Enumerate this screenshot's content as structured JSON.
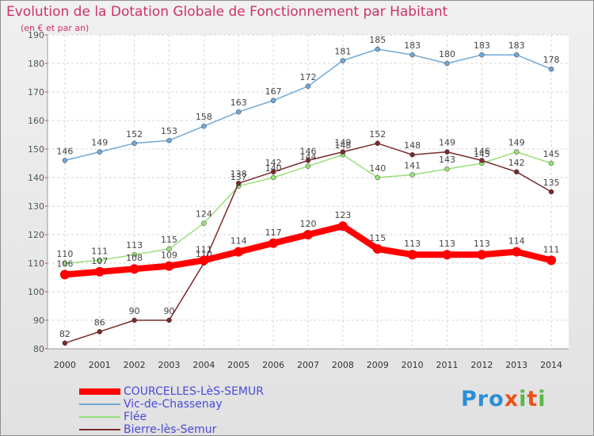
{
  "header": {
    "title": "Evolution de la Dotation Globale de Fonctionnement par Habitant",
    "subtitle": "(en € et par an)"
  },
  "logo": {
    "text": "Proxiti",
    "letter_colors": [
      "#2a8fd6",
      "#2a8fd6",
      "#2a8fd6",
      "#e8541a",
      "#57b846",
      "#e8541a",
      "#57b846"
    ]
  },
  "chart_data": {
    "type": "line",
    "title": "Evolution de la Dotation Globale de Fonctionnement par Habitant",
    "subtitle": "(en € et par an)",
    "xlabel": "",
    "ylabel": "",
    "x": [
      2000,
      2001,
      2002,
      2003,
      2004,
      2005,
      2006,
      2007,
      2008,
      2009,
      2010,
      2011,
      2012,
      2013,
      2014
    ],
    "ylim": [
      80,
      190
    ],
    "yticks": [
      80,
      90,
      100,
      110,
      120,
      130,
      140,
      150,
      160,
      170,
      180,
      190
    ],
    "grid": true,
    "legend_position": "bottom-left",
    "series": [
      {
        "name": "COURCELLES-LèS-SEMUR",
        "values": [
          106,
          107,
          108,
          109,
          111,
          114,
          117,
          120,
          123,
          115,
          113,
          113,
          113,
          114,
          111
        ],
        "color": "#ff0000",
        "emphasis": "thick"
      },
      {
        "name": "Vic-de-Chassenay",
        "values": [
          146,
          149,
          152,
          153,
          158,
          163,
          167,
          172,
          181,
          185,
          183,
          180,
          183,
          183,
          178
        ],
        "color": "#6fa8d6",
        "emphasis": "thin"
      },
      {
        "name": "Flée",
        "values": [
          110,
          111,
          113,
          115,
          124,
          137,
          140,
          144,
          148,
          140,
          141,
          143,
          145,
          149,
          145
        ],
        "color": "#99e07a",
        "emphasis": "thin"
      },
      {
        "name": "Bierre-lès-Semur",
        "values": [
          82,
          86,
          90,
          90,
          110,
          138,
          142,
          146,
          149,
          152,
          148,
          149,
          146,
          142,
          135
        ],
        "color": "#7a2a2a",
        "emphasis": "thin"
      }
    ]
  }
}
